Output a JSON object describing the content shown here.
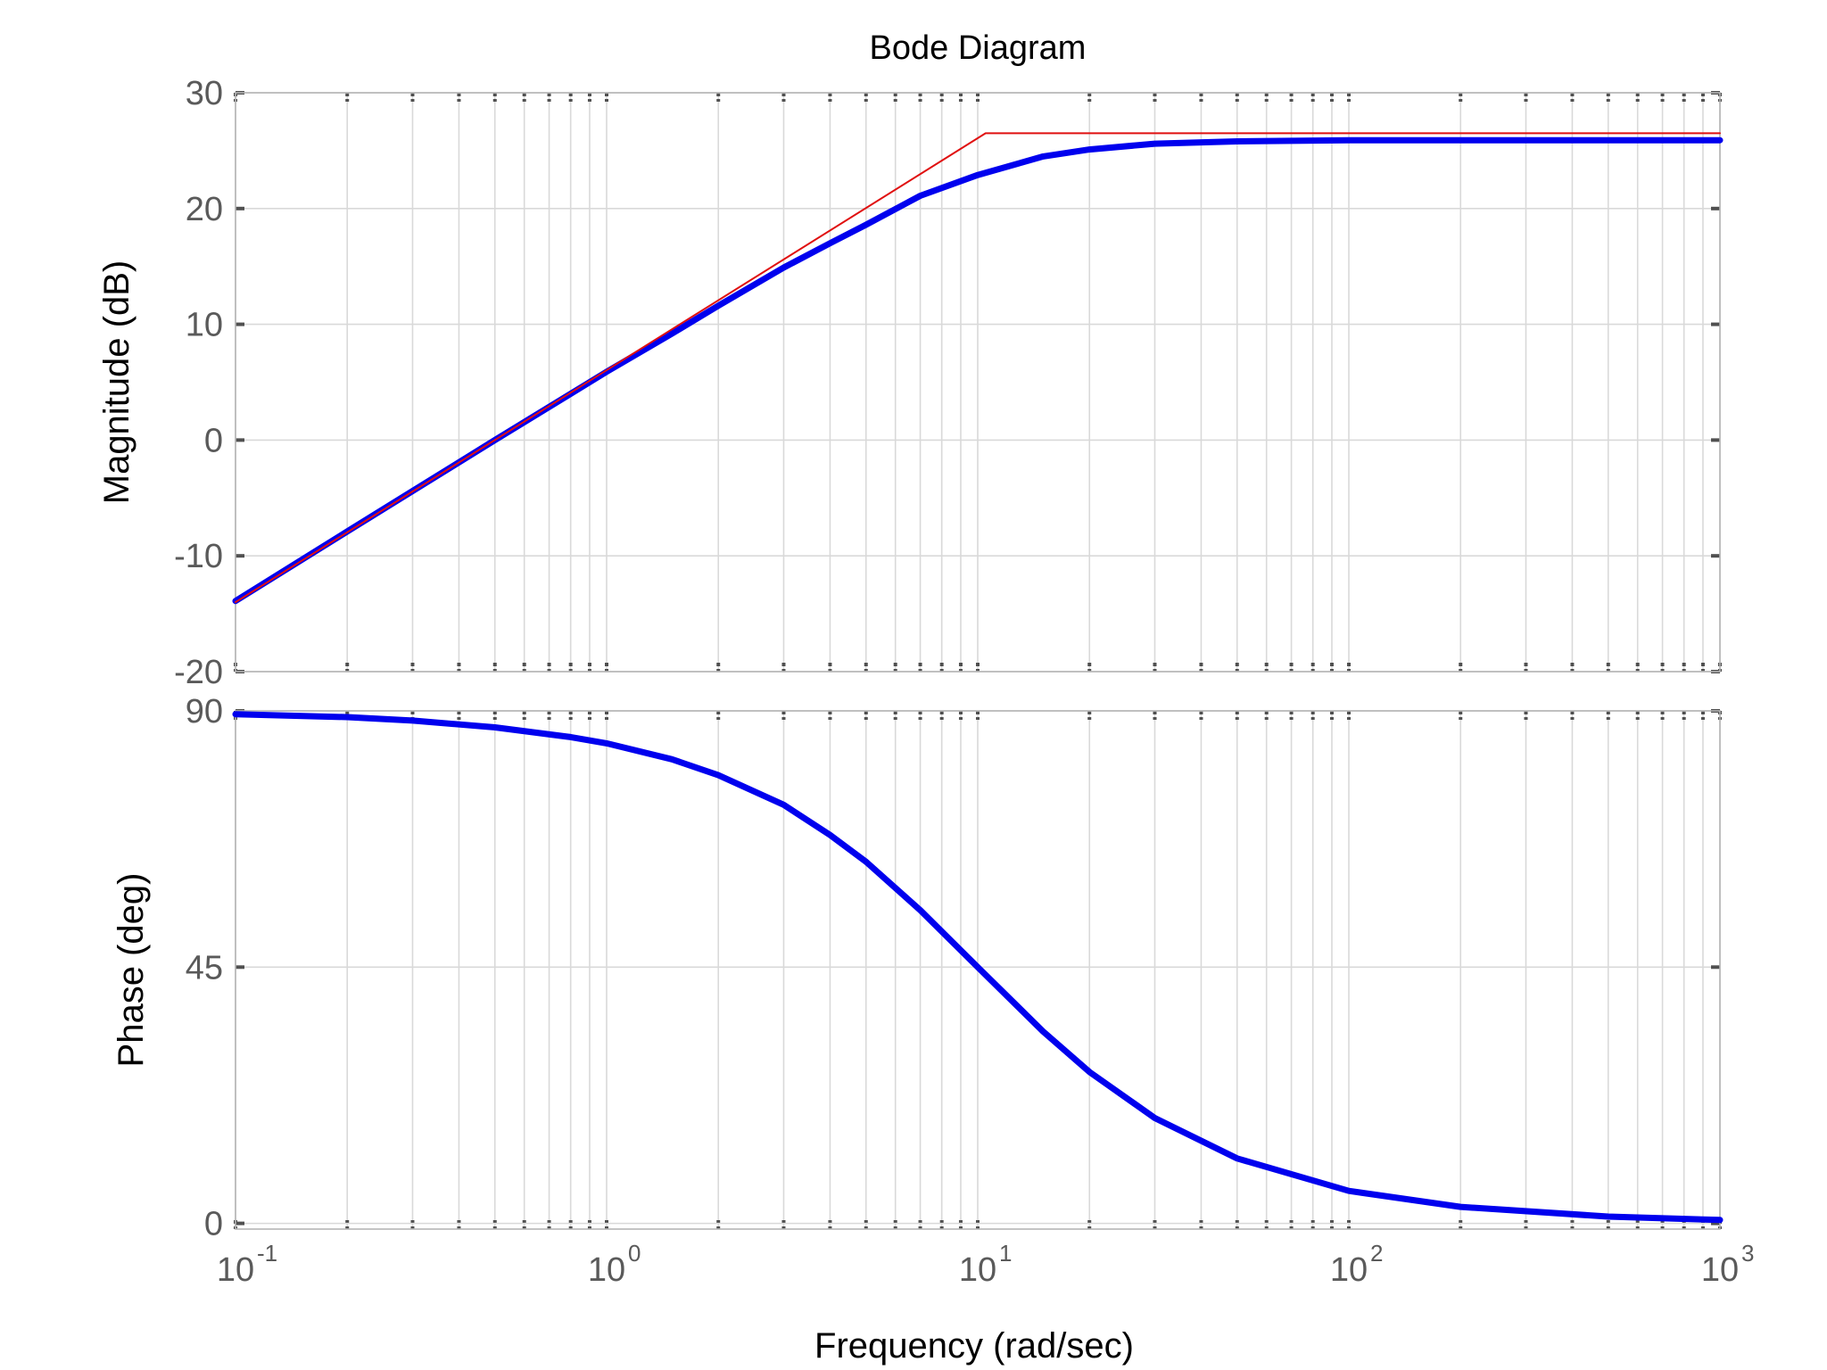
{
  "chart_data": {
    "type": "line",
    "title": "Bode Diagram",
    "xlabel": "Frequency  (rad/sec)",
    "xscale": "log",
    "xlim": [
      0.1,
      1000
    ],
    "xticks": [
      {
        "value": 0.1,
        "base": "10",
        "exp": "-1"
      },
      {
        "value": 1,
        "base": "10",
        "exp": "0"
      },
      {
        "value": 10,
        "base": "10",
        "exp": "1"
      },
      {
        "value": 100,
        "base": "10",
        "exp": "2"
      },
      {
        "value": 1000,
        "base": "10",
        "exp": "3"
      }
    ],
    "grid": true,
    "panels": [
      {
        "name": "magnitude",
        "ylabel": "Magnitude (dB)",
        "ylim": [
          -20,
          30
        ],
        "yticks": [
          {
            "value": -20,
            "label": "-20"
          },
          {
            "value": -10,
            "label": "-10"
          },
          {
            "value": 0,
            "label": "0"
          },
          {
            "value": 10,
            "label": "10"
          },
          {
            "value": 20,
            "label": "20"
          },
          {
            "value": 30,
            "label": "30"
          }
        ],
        "series": [
          {
            "color": "#0000ee",
            "x": [
              0.1,
              0.2,
              0.3,
              0.5,
              0.8,
              1,
              1.5,
              2,
              3,
              4,
              5,
              7,
              10,
              15,
              20,
              30,
              50,
              100,
              200,
              500,
              1000
            ],
            "y": [
              -13.9,
              -7.9,
              -4.4,
              0.0,
              4.0,
              5.9,
              9.2,
              11.6,
              14.9,
              17.0,
              18.6,
              21.1,
              22.9,
              24.5,
              25.1,
              25.6,
              25.8,
              25.9,
              25.9,
              25.9,
              25.9
            ]
          },
          {
            "color": "#e01010",
            "x": [
              0.1,
              10.5,
              1000
            ],
            "y": [
              -14.0,
              26.5,
              26.5
            ]
          }
        ]
      },
      {
        "name": "phase",
        "ylabel": "Phase (deg)",
        "ylim": [
          -1,
          90
        ],
        "yticks": [
          {
            "value": 0,
            "label": "0"
          },
          {
            "value": 45,
            "label": "45"
          },
          {
            "value": 90,
            "label": "90"
          }
        ],
        "series": [
          {
            "color": "#0000ee",
            "x": [
              0.1,
              0.2,
              0.3,
              0.5,
              0.8,
              1,
              1.5,
              2,
              3,
              4,
              5,
              7,
              10,
              15,
              20,
              30,
              50,
              100,
              200,
              500,
              1000
            ],
            "y": [
              89.4,
              88.9,
              88.3,
              87.1,
              85.4,
              84.3,
              81.5,
              78.7,
              73.5,
              68.2,
              63.5,
              55.0,
              45.0,
              33.7,
              26.6,
              18.5,
              11.4,
              5.7,
              2.9,
              1.2,
              0.6
            ]
          }
        ]
      }
    ]
  }
}
